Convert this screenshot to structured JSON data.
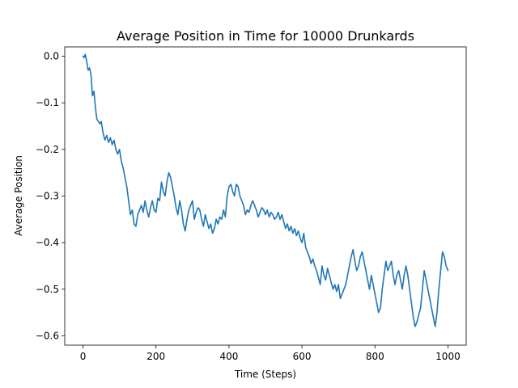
{
  "chart_data": {
    "type": "line",
    "title": "Average Position in Time for 10000 Drunkards",
    "xlabel": "Time (Steps)",
    "ylabel": "Average Position",
    "xlim": [
      -50,
      1050
    ],
    "ylim": [
      -0.62,
      0.02
    ],
    "grid": false,
    "x_ticks": [
      0,
      200,
      400,
      600,
      800,
      1000
    ],
    "x_tick_labels": [
      "0",
      "200",
      "400",
      "600",
      "800",
      "1000"
    ],
    "y_ticks": [
      0.0,
      -0.1,
      -0.2,
      -0.3,
      -0.4,
      -0.5,
      -0.6
    ],
    "y_tick_labels": [
      "0.0",
      "−0.1",
      "−0.2",
      "−0.3",
      "−0.4",
      "−0.5",
      "−0.6"
    ],
    "series": [
      {
        "color": "#1f77b4",
        "x": [
          0,
          3,
          6,
          10,
          14,
          18,
          22,
          26,
          30,
          34,
          38,
          42,
          46,
          50,
          55,
          60,
          65,
          70,
          75,
          80,
          85,
          90,
          95,
          100,
          105,
          110,
          115,
          120,
          125,
          130,
          135,
          140,
          145,
          150,
          155,
          160,
          165,
          170,
          175,
          180,
          185,
          190,
          195,
          200,
          205,
          210,
          215,
          220,
          225,
          230,
          235,
          240,
          245,
          250,
          255,
          260,
          265,
          270,
          275,
          280,
          285,
          290,
          295,
          300,
          305,
          310,
          315,
          320,
          325,
          330,
          335,
          340,
          345,
          350,
          355,
          360,
          365,
          370,
          375,
          380,
          385,
          390,
          395,
          400,
          405,
          410,
          415,
          420,
          425,
          430,
          435,
          440,
          445,
          450,
          455,
          460,
          465,
          470,
          475,
          480,
          485,
          490,
          495,
          500,
          505,
          510,
          515,
          520,
          525,
          530,
          535,
          540,
          545,
          550,
          555,
          560,
          565,
          570,
          575,
          580,
          585,
          590,
          595,
          600,
          605,
          610,
          615,
          620,
          625,
          630,
          635,
          640,
          645,
          650,
          655,
          660,
          665,
          670,
          675,
          680,
          685,
          690,
          695,
          700,
          705,
          710,
          715,
          720,
          725,
          730,
          735,
          740,
          745,
          750,
          755,
          760,
          765,
          770,
          775,
          780,
          785,
          790,
          795,
          800,
          805,
          810,
          815,
          820,
          825,
          830,
          835,
          840,
          845,
          850,
          855,
          860,
          865,
          870,
          875,
          880,
          885,
          890,
          895,
          900,
          905,
          910,
          915,
          920,
          925,
          930,
          935,
          940,
          945,
          950,
          955,
          960,
          965,
          970,
          975,
          980,
          985,
          990,
          995,
          1000
        ],
        "y": [
          0.0,
          -0.003,
          0.004,
          -0.01,
          -0.03,
          -0.025,
          -0.04,
          -0.085,
          -0.075,
          -0.11,
          -0.135,
          -0.14,
          -0.145,
          -0.14,
          -0.165,
          -0.18,
          -0.17,
          -0.185,
          -0.175,
          -0.19,
          -0.18,
          -0.2,
          -0.21,
          -0.2,
          -0.225,
          -0.24,
          -0.26,
          -0.28,
          -0.31,
          -0.34,
          -0.33,
          -0.36,
          -0.365,
          -0.34,
          -0.33,
          -0.32,
          -0.335,
          -0.31,
          -0.33,
          -0.345,
          -0.325,
          -0.31,
          -0.33,
          -0.335,
          -0.305,
          -0.31,
          -0.27,
          -0.29,
          -0.3,
          -0.27,
          -0.25,
          -0.26,
          -0.28,
          -0.3,
          -0.325,
          -0.34,
          -0.31,
          -0.33,
          -0.36,
          -0.375,
          -0.35,
          -0.33,
          -0.32,
          -0.31,
          -0.35,
          -0.335,
          -0.325,
          -0.33,
          -0.35,
          -0.365,
          -0.34,
          -0.355,
          -0.37,
          -0.36,
          -0.38,
          -0.37,
          -0.35,
          -0.36,
          -0.345,
          -0.35,
          -0.33,
          -0.345,
          -0.3,
          -0.28,
          -0.275,
          -0.29,
          -0.3,
          -0.275,
          -0.28,
          -0.3,
          -0.31,
          -0.32,
          -0.34,
          -0.33,
          -0.335,
          -0.32,
          -0.31,
          -0.32,
          -0.33,
          -0.345,
          -0.335,
          -0.325,
          -0.33,
          -0.34,
          -0.33,
          -0.345,
          -0.335,
          -0.34,
          -0.35,
          -0.345,
          -0.335,
          -0.35,
          -0.34,
          -0.355,
          -0.37,
          -0.36,
          -0.375,
          -0.365,
          -0.38,
          -0.37,
          -0.385,
          -0.375,
          -0.39,
          -0.4,
          -0.38,
          -0.41,
          -0.42,
          -0.43,
          -0.445,
          -0.435,
          -0.45,
          -0.46,
          -0.475,
          -0.49,
          -0.45,
          -0.47,
          -0.48,
          -0.455,
          -0.47,
          -0.485,
          -0.5,
          -0.49,
          -0.505,
          -0.49,
          -0.52,
          -0.51,
          -0.5,
          -0.49,
          -0.47,
          -0.45,
          -0.43,
          -0.415,
          -0.44,
          -0.46,
          -0.45,
          -0.43,
          -0.42,
          -0.44,
          -0.46,
          -0.48,
          -0.5,
          -0.47,
          -0.49,
          -0.51,
          -0.53,
          -0.55,
          -0.54,
          -0.5,
          -0.47,
          -0.44,
          -0.46,
          -0.45,
          -0.44,
          -0.47,
          -0.49,
          -0.47,
          -0.46,
          -0.48,
          -0.5,
          -0.47,
          -0.45,
          -0.47,
          -0.5,
          -0.53,
          -0.56,
          -0.58,
          -0.57,
          -0.555,
          -0.54,
          -0.5,
          -0.46,
          -0.48,
          -0.5,
          -0.52,
          -0.54,
          -0.56,
          -0.58,
          -0.55,
          -0.5,
          -0.46,
          -0.42,
          -0.43,
          -0.45,
          -0.46
        ]
      }
    ]
  }
}
